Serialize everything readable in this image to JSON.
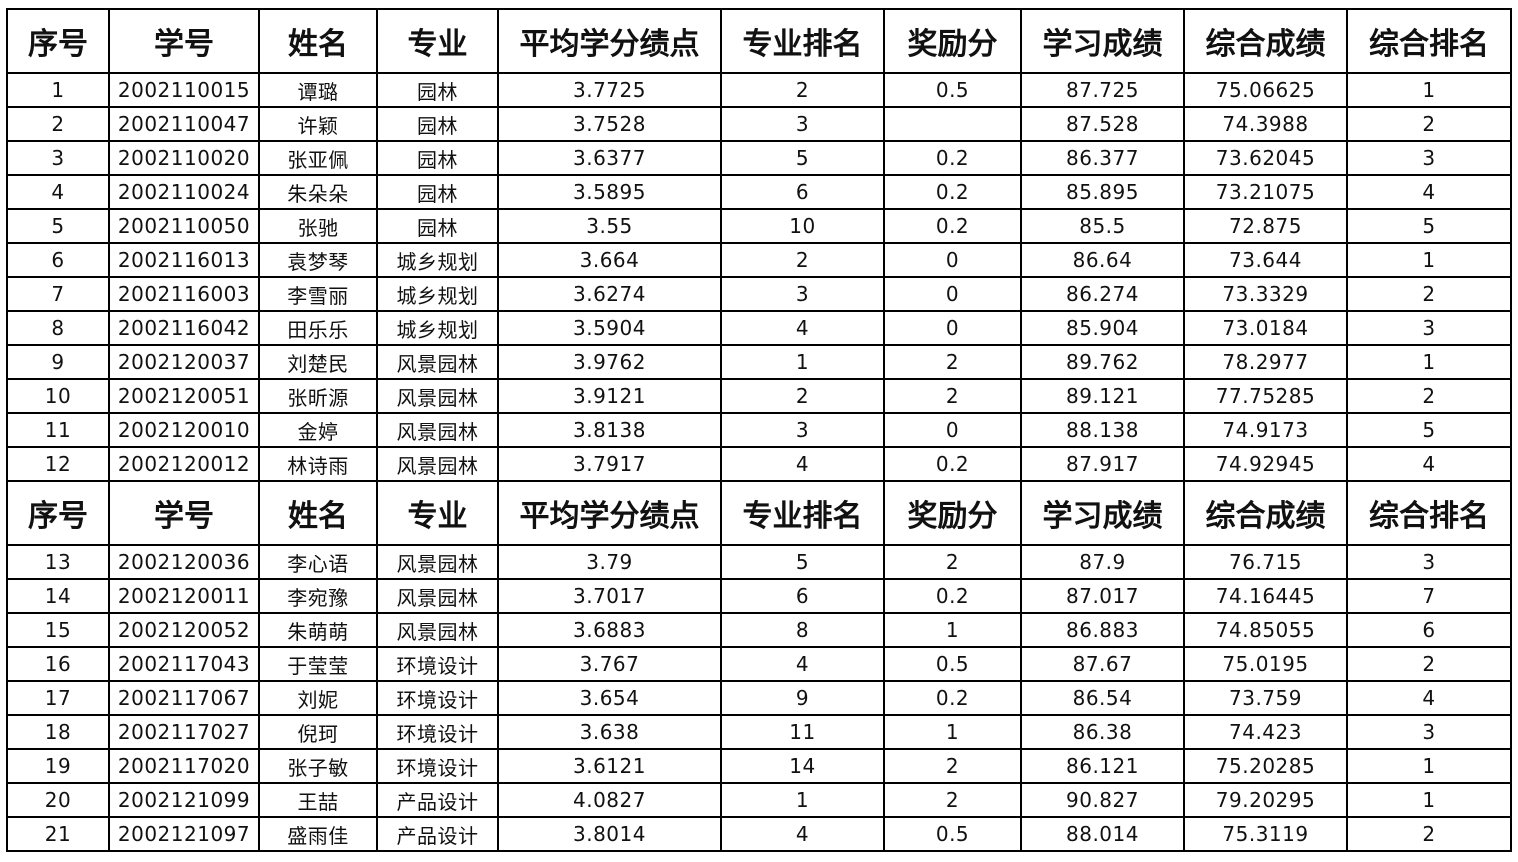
{
  "headers": [
    "序号",
    "学号",
    "姓名",
    "专业",
    "平均学分绩点",
    "专业排名",
    "奖励分",
    "学习成绩",
    "综合成绩",
    "综合排名"
  ],
  "sections": [
    [
      [
        "1",
        "2002110015",
        "谭璐",
        "园林",
        "3.7725",
        "2",
        "0.5",
        "87.725",
        "75.06625",
        "1"
      ],
      [
        "2",
        "2002110047",
        "许颖",
        "园林",
        "3.7528",
        "3",
        "",
        "87.528",
        "74.3988",
        "2"
      ],
      [
        "3",
        "2002110020",
        "张亚佩",
        "园林",
        "3.6377",
        "5",
        "0.2",
        "86.377",
        "73.62045",
        "3"
      ],
      [
        "4",
        "2002110024",
        "朱朵朵",
        "园林",
        "3.5895",
        "6",
        "0.2",
        "85.895",
        "73.21075",
        "4"
      ],
      [
        "5",
        "2002110050",
        "张驰",
        "园林",
        "3.55",
        "10",
        "0.2",
        "85.5",
        "72.875",
        "5"
      ],
      [
        "6",
        "2002116013",
        "袁梦琴",
        "城乡规划",
        "3.664",
        "2",
        "0",
        "86.64",
        "73.644",
        "1"
      ],
      [
        "7",
        "2002116003",
        "李雪丽",
        "城乡规划",
        "3.6274",
        "3",
        "0",
        "86.274",
        "73.3329",
        "2"
      ],
      [
        "8",
        "2002116042",
        "田乐乐",
        "城乡规划",
        "3.5904",
        "4",
        "0",
        "85.904",
        "73.0184",
        "3"
      ],
      [
        "9",
        "2002120037",
        "刘楚民",
        "风景园林",
        "3.9762",
        "1",
        "2",
        "89.762",
        "78.2977",
        "1"
      ],
      [
        "10",
        "2002120051",
        "张昕源",
        "风景园林",
        "3.9121",
        "2",
        "2",
        "89.121",
        "77.75285",
        "2"
      ],
      [
        "11",
        "2002120010",
        "金婷",
        "风景园林",
        "3.8138",
        "3",
        "0",
        "88.138",
        "74.9173",
        "5"
      ],
      [
        "12",
        "2002120012",
        "林诗雨",
        "风景园林",
        "3.7917",
        "4",
        "0.2",
        "87.917",
        "74.92945",
        "4"
      ]
    ],
    [
      [
        "13",
        "2002120036",
        "李心语",
        "风景园林",
        "3.79",
        "5",
        "2",
        "87.9",
        "76.715",
        "3"
      ],
      [
        "14",
        "2002120011",
        "李宛豫",
        "风景园林",
        "3.7017",
        "6",
        "0.2",
        "87.017",
        "74.16445",
        "7"
      ],
      [
        "15",
        "2002120052",
        "朱萌萌",
        "风景园林",
        "3.6883",
        "8",
        "1",
        "86.883",
        "74.85055",
        "6"
      ],
      [
        "16",
        "2002117043",
        "于莹莹",
        "环境设计",
        "3.767",
        "4",
        "0.5",
        "87.67",
        "75.0195",
        "2"
      ],
      [
        "17",
        "2002117067",
        "刘妮",
        "环境设计",
        "3.654",
        "9",
        "0.2",
        "86.54",
        "73.759",
        "4"
      ],
      [
        "18",
        "2002117027",
        "倪珂",
        "环境设计",
        "3.638",
        "11",
        "1",
        "86.38",
        "74.423",
        "3"
      ],
      [
        "19",
        "2002117020",
        "张子敏",
        "环境设计",
        "3.6121",
        "14",
        "2",
        "86.121",
        "75.20285",
        "1"
      ],
      [
        "20",
        "2002121099",
        "王喆",
        "产品设计",
        "4.0827",
        "1",
        "2",
        "90.827",
        "79.20295",
        "1"
      ],
      [
        "21",
        "2002121097",
        "盛雨佳",
        "产品设计",
        "3.8014",
        "4",
        "0.5",
        "88.014",
        "75.3119",
        "2"
      ]
    ]
  ]
}
